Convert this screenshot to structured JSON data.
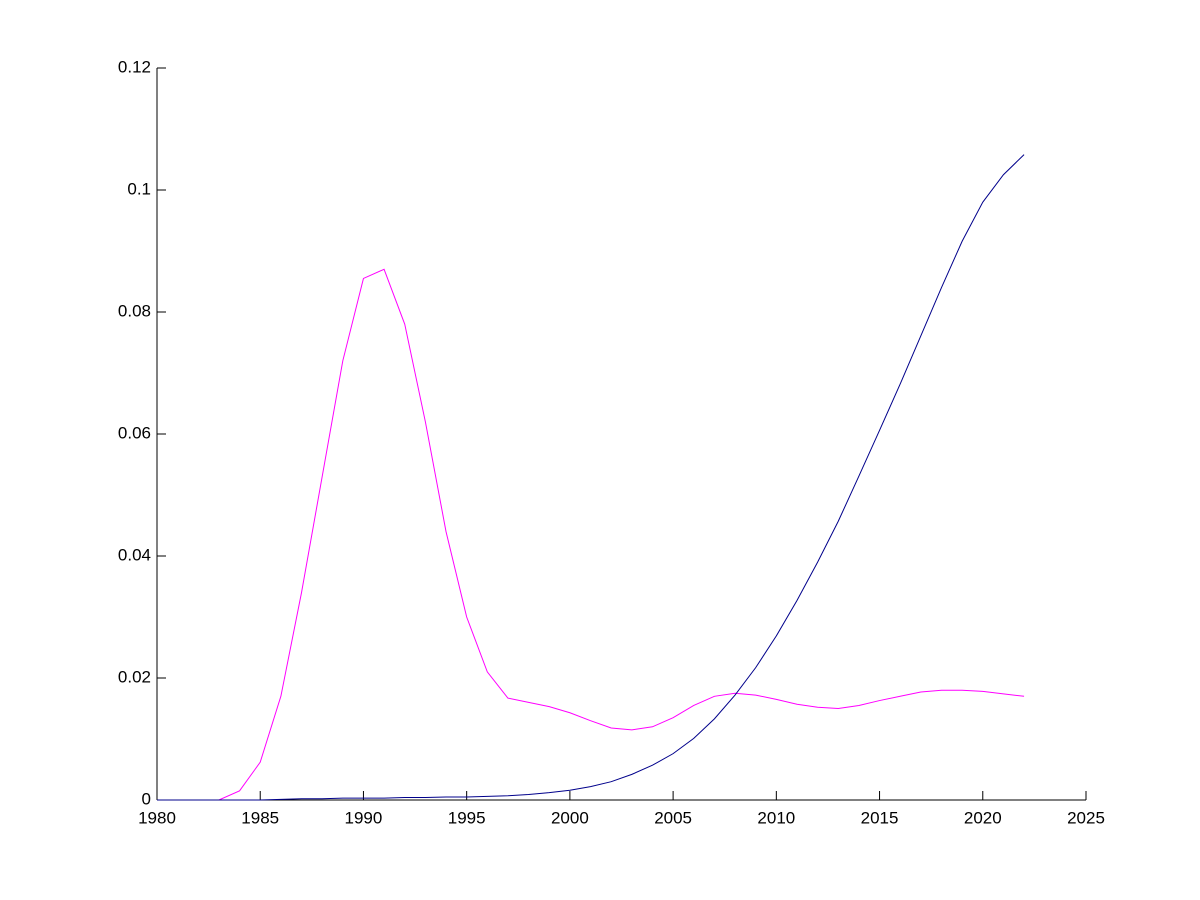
{
  "chart_data": {
    "type": "line",
    "x": [
      1980,
      1981,
      1982,
      1983,
      1984,
      1985,
      1986,
      1987,
      1988,
      1989,
      1990,
      1991,
      1992,
      1993,
      1994,
      1995,
      1996,
      1997,
      1998,
      1999,
      2000,
      2001,
      2002,
      2003,
      2004,
      2005,
      2006,
      2007,
      2008,
      2009,
      2010,
      2011,
      2012,
      2013,
      2014,
      2015,
      2016,
      2017,
      2018,
      2019,
      2020,
      2021,
      2022
    ],
    "series": [
      {
        "color": "#ff00ff",
        "values": [
          0,
          0,
          0,
          0,
          0.0015,
          0.0062,
          0.017,
          0.034,
          0.053,
          0.072,
          0.0855,
          0.087,
          0.078,
          0.062,
          0.044,
          0.03,
          0.021,
          0.0167,
          0.016,
          0.0153,
          0.0143,
          0.013,
          0.0118,
          0.0115,
          0.012,
          0.0135,
          0.0155,
          0.017,
          0.0175,
          0.0172,
          0.0165,
          0.0157,
          0.0152,
          0.015,
          0.0155,
          0.0163,
          0.017,
          0.0177,
          0.018,
          0.018,
          0.0178,
          0.0174,
          0.017
        ]
      },
      {
        "color": "#00008b",
        "values": [
          0,
          0,
          0,
          0,
          0,
          0,
          0.0001,
          0.0002,
          0.0002,
          0.0003,
          0.0003,
          0.0003,
          0.0004,
          0.0004,
          0.0005,
          0.0005,
          0.0006,
          0.0007,
          0.0009,
          0.0012,
          0.0016,
          0.0022,
          0.003,
          0.0042,
          0.0057,
          0.0076,
          0.0101,
          0.0133,
          0.0172,
          0.0217,
          0.0269,
          0.0327,
          0.039,
          0.0457,
          0.0531,
          0.0606,
          0.0682,
          0.0761,
          0.084,
          0.0916,
          0.098,
          0.1025,
          0.1058
        ]
      }
    ],
    "xlim": [
      1980,
      2025
    ],
    "xticks": [
      1980,
      1985,
      1990,
      1995,
      2000,
      2005,
      2010,
      2015,
      2020,
      2025
    ],
    "ylim": [
      0,
      0.12
    ],
    "yticks": [
      0,
      0.02,
      0.04,
      0.06,
      0.08,
      0.1,
      0.12
    ],
    "grid": false
  }
}
